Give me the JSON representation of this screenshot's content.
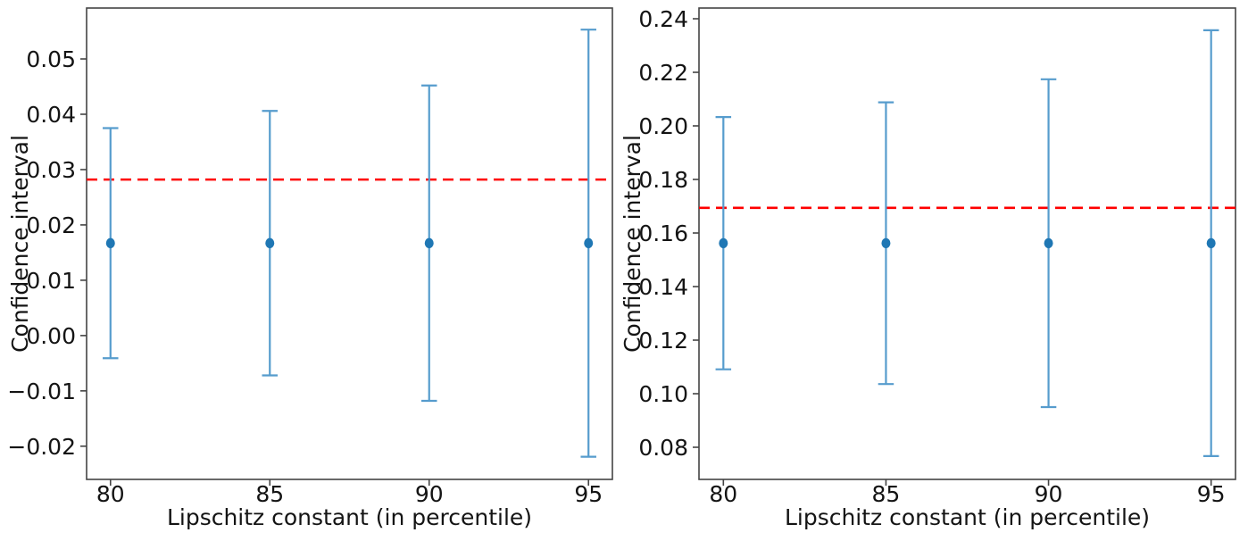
{
  "colors": {
    "marker": "#1f77b4",
    "errorbar": "#569ccd",
    "refline": "#ff0000",
    "spine": "#444444",
    "text": "#141414"
  },
  "chart_data": [
    {
      "type": "scatter",
      "subplot": "left",
      "title": "",
      "xlabel": "Lipschitz constant (in percentile)",
      "ylabel": "Confidence interval",
      "x": [
        80,
        85,
        90,
        95
      ],
      "xtick_labels": [
        "80",
        "85",
        "90",
        "95"
      ],
      "y": [
        0.0167,
        0.0167,
        0.0167,
        0.0167
      ],
      "yerr": [
        0.0208,
        0.0239,
        0.0285,
        0.0386
      ],
      "refline": {
        "y": 0.0282,
        "color": "#ff0000",
        "style": "dashed"
      },
      "xlim": [
        79.25,
        95.75
      ],
      "ylim": [
        -0.026,
        0.0592
      ],
      "yticks": [
        0.05,
        0.04,
        0.03,
        0.02,
        0.01,
        0.0,
        -0.01,
        -0.02
      ],
      "ytick_labels": [
        "0.05",
        "0.04",
        "0.03",
        "0.02",
        "0.01",
        "0.00",
        "−0.01",
        "−0.02"
      ],
      "grid": false,
      "legend": null
    },
    {
      "type": "scatter",
      "subplot": "right",
      "title": "",
      "xlabel": "Lipschitz constant (in percentile)",
      "ylabel": "Confidence interval",
      "x": [
        80,
        85,
        90,
        95
      ],
      "xtick_labels": [
        "80",
        "85",
        "90",
        "95"
      ],
      "y": [
        0.1562,
        0.1562,
        0.1562,
        0.1562
      ],
      "yerr": [
        0.0471,
        0.0526,
        0.0612,
        0.0795
      ],
      "refline": {
        "y": 0.1694,
        "color": "#ff0000",
        "style": "dashed"
      },
      "xlim": [
        79.25,
        95.75
      ],
      "ylim": [
        0.068,
        0.244
      ],
      "yticks": [
        0.24,
        0.22,
        0.2,
        0.18,
        0.16,
        0.14,
        0.12,
        0.1,
        0.08
      ],
      "ytick_labels": [
        "0.24",
        "0.22",
        "0.20",
        "0.18",
        "0.16",
        "0.14",
        "0.12",
        "0.10",
        "0.08"
      ],
      "grid": false,
      "legend": null
    }
  ]
}
